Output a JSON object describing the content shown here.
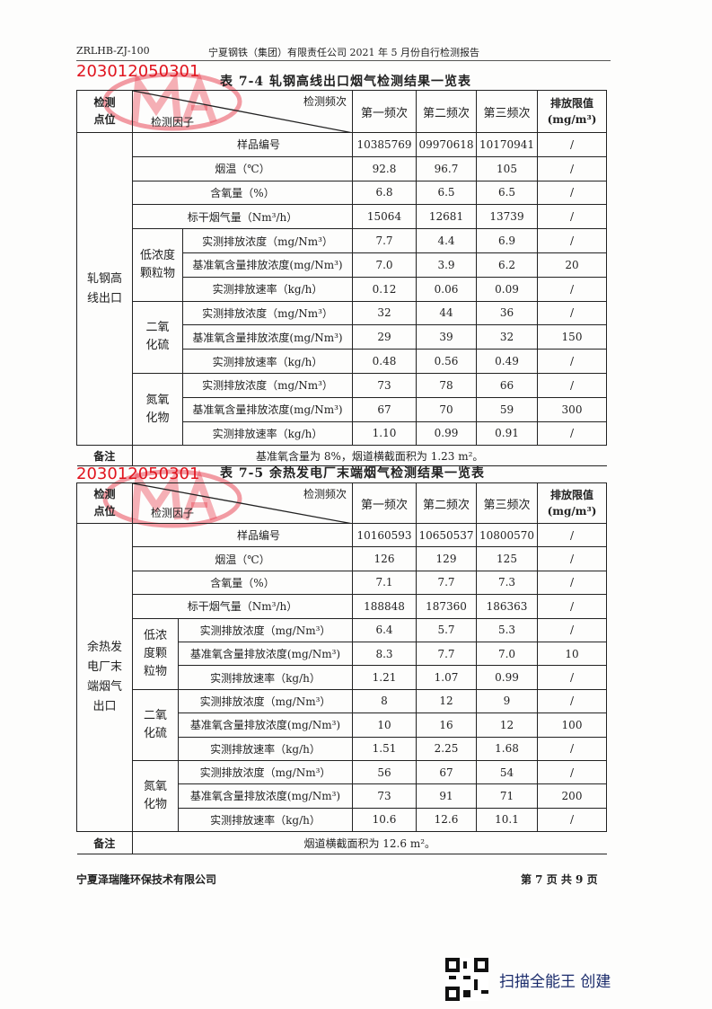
{
  "header": {
    "code": "ZRLHB-ZJ-100",
    "report_title": "宁夏钢铁（集团）有限责任公司 2021 年 5 月份自行检测报告"
  },
  "stamp": {
    "logo": "MA",
    "number": "203012050301",
    "color": "#e0141e"
  },
  "tables": [
    {
      "title": "表 7-4   轧钢高线出口烟气检测结果一览表",
      "head": {
        "location": "检测\n点位",
        "freq": "检测频次",
        "factor": "检测因子",
        "cols": [
          "第一频次",
          "第二频次",
          "第三频次"
        ],
        "limit": "排放限值\n(mg/m³)"
      },
      "location": "轧钢高\n线出口",
      "rows": [
        {
          "factor": "样品编号",
          "values": [
            "10385769",
            "09970618",
            "10170941"
          ],
          "limit": "/"
        },
        {
          "factor": "烟温（℃）",
          "values": [
            "92.8",
            "96.7",
            "105"
          ],
          "limit": "/"
        },
        {
          "factor": "含氧量（%）",
          "values": [
            "6.8",
            "6.5",
            "6.5"
          ],
          "limit": "/"
        },
        {
          "factor": "标干烟气量（Nm³/h）",
          "values": [
            "15064",
            "12681",
            "13739"
          ],
          "limit": "/"
        },
        {
          "group": "低浓度\n颗粒物",
          "factor": "实测排放浓度（mg/Nm³）",
          "values": [
            "7.7",
            "4.4",
            "6.9"
          ],
          "limit": "/"
        },
        {
          "factor": "基准氧含量排放浓度(mg/Nm³)",
          "values": [
            "7.0",
            "3.9",
            "6.2"
          ],
          "limit": "20"
        },
        {
          "factor": "实测排放速率（kg/h）",
          "values": [
            "0.12",
            "0.06",
            "0.09"
          ],
          "limit": "/"
        },
        {
          "group": "二氧\n化硫",
          "factor": "实测排放浓度（mg/Nm³）",
          "values": [
            "32",
            "44",
            "36"
          ],
          "limit": "/"
        },
        {
          "factor": "基准氧含量排放浓度(mg/Nm³)",
          "values": [
            "29",
            "39",
            "32"
          ],
          "limit": "150"
        },
        {
          "factor": "实测排放速率（kg/h）",
          "values": [
            "0.48",
            "0.56",
            "0.49"
          ],
          "limit": "/"
        },
        {
          "group": "氮氧\n化物",
          "factor": "实测排放浓度（mg/Nm³）",
          "values": [
            "73",
            "78",
            "66"
          ],
          "limit": "/"
        },
        {
          "factor": "基准氧含量排放浓度(mg/Nm³)",
          "values": [
            "67",
            "70",
            "59"
          ],
          "limit": "300"
        },
        {
          "factor": "实测排放速率（kg/h）",
          "values": [
            "1.10",
            "0.99",
            "0.91"
          ],
          "limit": "/"
        }
      ],
      "remark_label": "备注",
      "remark": "基准氧含量为 8%，烟道横截面积为 1.23 m²。"
    },
    {
      "title": "表 7-5   余热发电厂末端烟气检测结果一览表",
      "head": {
        "location": "检测\n点位",
        "freq": "检测频次",
        "factor": "检测因子",
        "cols": [
          "第一频次",
          "第二频次",
          "第三频次"
        ],
        "limit": "排放限值\n(mg/m³)"
      },
      "location": "余热发\n电厂末\n端烟气\n出口",
      "rows": [
        {
          "factor": "样品编号",
          "values": [
            "10160593",
            "10650537",
            "10800570"
          ],
          "limit": "/"
        },
        {
          "factor": "烟温（℃）",
          "values": [
            "126",
            "129",
            "125"
          ],
          "limit": "/"
        },
        {
          "factor": "含氧量（%）",
          "values": [
            "7.1",
            "7.7",
            "7.3"
          ],
          "limit": "/"
        },
        {
          "factor": "标干烟气量（Nm³/h）",
          "values": [
            "188848",
            "187360",
            "186363"
          ],
          "limit": "/"
        },
        {
          "group": "低浓\n度颗\n粒物",
          "factor": "实测排放浓度（mg/Nm³）",
          "values": [
            "6.4",
            "5.7",
            "5.3"
          ],
          "limit": "/"
        },
        {
          "factor": "基准氧含量排放浓度(mg/Nm³)",
          "values": [
            "8.3",
            "7.7",
            "7.0"
          ],
          "limit": "10"
        },
        {
          "factor": "实测排放速率（kg/h）",
          "values": [
            "1.21",
            "1.07",
            "0.99"
          ],
          "limit": "/"
        },
        {
          "group": "二氧\n化硫",
          "factor": "实测排放浓度（mg/Nm³）",
          "values": [
            "8",
            "12",
            "9"
          ],
          "limit": "/"
        },
        {
          "factor": "基准氧含量排放浓度(mg/Nm³)",
          "values": [
            "10",
            "16",
            "12"
          ],
          "limit": "100"
        },
        {
          "factor": "实测排放速率（kg/h）",
          "values": [
            "1.51",
            "2.25",
            "1.68"
          ],
          "limit": "/"
        },
        {
          "group": "氮氧\n化物",
          "factor": "实测排放浓度（mg/Nm³）",
          "values": [
            "56",
            "67",
            "54"
          ],
          "limit": "/"
        },
        {
          "factor": "基准氧含量排放浓度(mg/Nm³)",
          "values": [
            "73",
            "91",
            "71"
          ],
          "limit": "200"
        },
        {
          "factor": "实测排放速率（kg/h）",
          "values": [
            "10.6",
            "12.6",
            "10.1"
          ],
          "limit": "/"
        }
      ],
      "remark_label": "备注",
      "remark": "烟道横截面积为 12.6 m²。"
    }
  ],
  "footer": {
    "company": "宁夏泽瑞隆环保技术有限公司",
    "page": "第 7 页 共 9 页"
  },
  "watermark": {
    "label": "扫描全能王 创建"
  }
}
